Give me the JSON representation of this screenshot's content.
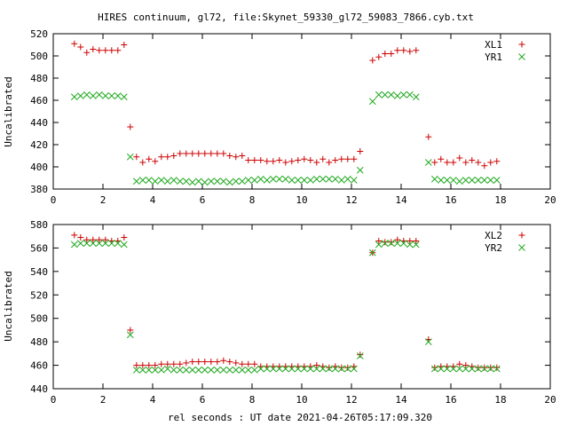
{
  "title": "HIRES continuum, gl72, file:Skynet_59330_gl72_59083_7866.cyb.txt",
  "xlabel": "rel seconds : UT date 2021-04-26T05:17:09.320",
  "colors": {
    "red": "#cc0000",
    "green": "#22aa22"
  },
  "chart_data": [
    {
      "type": "scatter",
      "ylabel": "Uncalibrated",
      "xlim": [
        0,
        20
      ],
      "ylim": [
        380,
        520
      ],
      "xticks": [
        0,
        2,
        4,
        6,
        8,
        10,
        12,
        14,
        16,
        18,
        20
      ],
      "yticks": [
        380,
        400,
        420,
        440,
        460,
        480,
        500,
        520
      ],
      "legend_position": "top-right",
      "series": [
        {
          "name": "XL1",
          "marker": "plus",
          "color": "#cc0000",
          "points": [
            [
              0.85,
              511
            ],
            [
              1.1,
              508
            ],
            [
              1.35,
              503
            ],
            [
              1.6,
              506
            ],
            [
              1.85,
              505
            ],
            [
              2.1,
              505
            ],
            [
              2.35,
              505
            ],
            [
              2.6,
              505
            ],
            [
              2.85,
              510
            ],
            [
              3.1,
              436
            ],
            [
              3.35,
              409
            ],
            [
              3.6,
              404
            ],
            [
              3.85,
              407
            ],
            [
              4.1,
              405
            ],
            [
              4.35,
              409
            ],
            [
              4.6,
              409
            ],
            [
              4.85,
              410
            ],
            [
              5.1,
              412
            ],
            [
              5.35,
              412
            ],
            [
              5.6,
              412
            ],
            [
              5.85,
              412
            ],
            [
              6.1,
              412
            ],
            [
              6.35,
              412
            ],
            [
              6.6,
              412
            ],
            [
              6.85,
              412
            ],
            [
              7.1,
              410
            ],
            [
              7.35,
              409
            ],
            [
              7.6,
              410
            ],
            [
              7.85,
              406
            ],
            [
              8.1,
              406
            ],
            [
              8.35,
              406
            ],
            [
              8.6,
              405
            ],
            [
              8.85,
              405
            ],
            [
              9.1,
              406
            ],
            [
              9.35,
              404
            ],
            [
              9.6,
              405
            ],
            [
              9.85,
              406
            ],
            [
              10.1,
              407
            ],
            [
              10.35,
              406
            ],
            [
              10.6,
              404
            ],
            [
              10.85,
              407
            ],
            [
              11.1,
              404
            ],
            [
              11.35,
              406
            ],
            [
              11.6,
              407
            ],
            [
              11.85,
              407
            ],
            [
              12.1,
              407
            ],
            [
              12.35,
              414
            ],
            [
              12.85,
              496
            ],
            [
              13.1,
              499
            ],
            [
              13.35,
              502
            ],
            [
              13.6,
              502
            ],
            [
              13.85,
              505
            ],
            [
              14.1,
              505
            ],
            [
              14.35,
              504
            ],
            [
              14.6,
              505
            ],
            [
              15.1,
              427
            ],
            [
              15.35,
              404
            ],
            [
              15.6,
              407
            ],
            [
              15.85,
              404
            ],
            [
              16.1,
              404
            ],
            [
              16.35,
              408
            ],
            [
              16.6,
              404
            ],
            [
              16.85,
              406
            ],
            [
              17.1,
              404
            ],
            [
              17.35,
              401
            ],
            [
              17.6,
              404
            ],
            [
              17.85,
              405
            ]
          ]
        },
        {
          "name": "YR1",
          "marker": "cross",
          "color": "#22aa22",
          "points": [
            [
              0.85,
              463
            ],
            [
              1.1,
              464
            ],
            [
              1.35,
              465
            ],
            [
              1.6,
              464
            ],
            [
              1.85,
              465
            ],
            [
              2.1,
              464
            ],
            [
              2.35,
              464
            ],
            [
              2.6,
              464
            ],
            [
              2.85,
              463
            ],
            [
              3.1,
              409
            ],
            [
              3.35,
              387
            ],
            [
              3.6,
              388
            ],
            [
              3.85,
              388
            ],
            [
              4.1,
              387
            ],
            [
              4.35,
              388
            ],
            [
              4.6,
              387
            ],
            [
              4.85,
              388
            ],
            [
              5.1,
              387
            ],
            [
              5.35,
              387
            ],
            [
              5.6,
              386
            ],
            [
              5.85,
              387
            ],
            [
              6.1,
              386
            ],
            [
              6.35,
              387
            ],
            [
              6.6,
              387
            ],
            [
              6.85,
              387
            ],
            [
              7.1,
              386
            ],
            [
              7.35,
              387
            ],
            [
              7.6,
              387
            ],
            [
              7.85,
              388
            ],
            [
              8.1,
              388
            ],
            [
              8.35,
              389
            ],
            [
              8.6,
              388
            ],
            [
              8.85,
              389
            ],
            [
              9.1,
              389
            ],
            [
              9.35,
              389
            ],
            [
              9.6,
              388
            ],
            [
              9.85,
              388
            ],
            [
              10.1,
              388
            ],
            [
              10.35,
              388
            ],
            [
              10.6,
              389
            ],
            [
              10.85,
              389
            ],
            [
              11.1,
              389
            ],
            [
              11.35,
              389
            ],
            [
              11.6,
              388
            ],
            [
              11.85,
              389
            ],
            [
              12.1,
              388
            ],
            [
              12.35,
              397
            ],
            [
              12.85,
              459
            ],
            [
              13.1,
              465
            ],
            [
              13.35,
              465
            ],
            [
              13.6,
              465
            ],
            [
              13.85,
              464
            ],
            [
              14.1,
              465
            ],
            [
              14.35,
              465
            ],
            [
              14.6,
              463
            ],
            [
              15.1,
              404
            ],
            [
              15.35,
              389
            ],
            [
              15.6,
              388
            ],
            [
              15.85,
              388
            ],
            [
              16.1,
              388
            ],
            [
              16.35,
              387
            ],
            [
              16.6,
              388
            ],
            [
              16.85,
              388
            ],
            [
              17.1,
              388
            ],
            [
              17.35,
              388
            ],
            [
              17.6,
              388
            ],
            [
              17.85,
              388
            ]
          ]
        }
      ]
    },
    {
      "type": "scatter",
      "ylabel": "Uncalibrated",
      "xlim": [
        0,
        20
      ],
      "ylim": [
        440,
        580
      ],
      "xticks": [
        0,
        2,
        4,
        6,
        8,
        10,
        12,
        14,
        16,
        18,
        20
      ],
      "yticks": [
        440,
        460,
        480,
        500,
        520,
        540,
        560,
        580
      ],
      "legend_position": "top-right",
      "series": [
        {
          "name": "XL2",
          "marker": "plus",
          "color": "#cc0000",
          "points": [
            [
              0.85,
              571
            ],
            [
              1.1,
              569
            ],
            [
              1.35,
              567
            ],
            [
              1.6,
              567
            ],
            [
              1.85,
              567
            ],
            [
              2.1,
              567
            ],
            [
              2.35,
              566
            ],
            [
              2.6,
              566
            ],
            [
              2.85,
              569
            ],
            [
              3.1,
              490
            ],
            [
              3.35,
              460
            ],
            [
              3.6,
              460
            ],
            [
              3.85,
              460
            ],
            [
              4.1,
              460
            ],
            [
              4.35,
              461
            ],
            [
              4.6,
              461
            ],
            [
              4.85,
              461
            ],
            [
              5.1,
              461
            ],
            [
              5.35,
              462
            ],
            [
              5.6,
              463
            ],
            [
              5.85,
              463
            ],
            [
              6.1,
              463
            ],
            [
              6.35,
              463
            ],
            [
              6.6,
              463
            ],
            [
              6.85,
              464
            ],
            [
              7.1,
              463
            ],
            [
              7.35,
              462
            ],
            [
              7.6,
              461
            ],
            [
              7.85,
              461
            ],
            [
              8.1,
              461
            ],
            [
              8.35,
              459
            ],
            [
              8.6,
              459
            ],
            [
              8.85,
              459
            ],
            [
              9.1,
              459
            ],
            [
              9.35,
              459
            ],
            [
              9.6,
              459
            ],
            [
              9.85,
              459
            ],
            [
              10.1,
              459
            ],
            [
              10.35,
              459
            ],
            [
              10.6,
              460
            ],
            [
              10.85,
              459
            ],
            [
              11.1,
              458
            ],
            [
              11.35,
              459
            ],
            [
              11.6,
              458
            ],
            [
              11.85,
              458
            ],
            [
              12.1,
              459
            ],
            [
              12.35,
              469
            ],
            [
              12.85,
              556
            ],
            [
              13.1,
              566
            ],
            [
              13.35,
              565
            ],
            [
              13.6,
              565
            ],
            [
              13.85,
              567
            ],
            [
              14.1,
              566
            ],
            [
              14.35,
              566
            ],
            [
              14.6,
              566
            ],
            [
              15.1,
              482
            ],
            [
              15.35,
              458
            ],
            [
              15.6,
              459
            ],
            [
              15.85,
              459
            ],
            [
              16.1,
              459
            ],
            [
              16.35,
              461
            ],
            [
              16.6,
              460
            ],
            [
              16.85,
              459
            ],
            [
              17.1,
              458
            ],
            [
              17.35,
              458
            ],
            [
              17.6,
              458
            ],
            [
              17.85,
              458
            ]
          ]
        },
        {
          "name": "YR2",
          "marker": "cross",
          "color": "#22aa22",
          "points": [
            [
              0.85,
              563
            ],
            [
              1.1,
              564
            ],
            [
              1.35,
              564
            ],
            [
              1.6,
              564
            ],
            [
              1.85,
              564
            ],
            [
              2.1,
              564
            ],
            [
              2.35,
              564
            ],
            [
              2.6,
              564
            ],
            [
              2.85,
              563
            ],
            [
              3.1,
              486
            ],
            [
              3.35,
              456
            ],
            [
              3.6,
              456
            ],
            [
              3.85,
              456
            ],
            [
              4.1,
              456
            ],
            [
              4.35,
              456
            ],
            [
              4.6,
              457
            ],
            [
              4.85,
              456
            ],
            [
              5.1,
              456
            ],
            [
              5.35,
              456
            ],
            [
              5.6,
              456
            ],
            [
              5.85,
              456
            ],
            [
              6.1,
              456
            ],
            [
              6.35,
              456
            ],
            [
              6.6,
              456
            ],
            [
              6.85,
              456
            ],
            [
              7.1,
              456
            ],
            [
              7.35,
              456
            ],
            [
              7.6,
              456
            ],
            [
              7.85,
              456
            ],
            [
              8.1,
              456
            ],
            [
              8.35,
              457
            ],
            [
              8.6,
              457
            ],
            [
              8.85,
              457
            ],
            [
              9.1,
              457
            ],
            [
              9.35,
              457
            ],
            [
              9.6,
              457
            ],
            [
              9.85,
              457
            ],
            [
              10.1,
              457
            ],
            [
              10.35,
              457
            ],
            [
              10.6,
              457
            ],
            [
              10.85,
              457
            ],
            [
              11.1,
              457
            ],
            [
              11.35,
              457
            ],
            [
              11.6,
              457
            ],
            [
              11.85,
              457
            ],
            [
              12.1,
              457
            ],
            [
              12.35,
              468
            ],
            [
              12.85,
              556
            ],
            [
              13.1,
              563
            ],
            [
              13.35,
              564
            ],
            [
              13.6,
              564
            ],
            [
              13.85,
              564
            ],
            [
              14.1,
              564
            ],
            [
              14.35,
              563
            ],
            [
              14.6,
              563
            ],
            [
              15.1,
              480
            ],
            [
              15.35,
              457
            ],
            [
              15.6,
              457
            ],
            [
              15.85,
              457
            ],
            [
              16.1,
              457
            ],
            [
              16.35,
              457
            ],
            [
              16.6,
              457
            ],
            [
              16.85,
              457
            ],
            [
              17.1,
              457
            ],
            [
              17.35,
              457
            ],
            [
              17.6,
              457
            ],
            [
              17.85,
              457
            ]
          ]
        }
      ]
    }
  ]
}
